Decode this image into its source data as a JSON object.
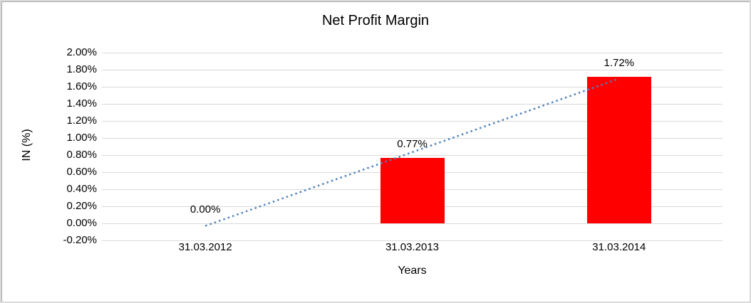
{
  "chart_data": {
    "type": "bar",
    "title": "Net Profit Margin",
    "xlabel": "Years",
    "ylabel": "IN (%)",
    "categories": [
      "31.03.2012",
      "31.03.2013",
      "31.03.2014"
    ],
    "values": [
      0.0,
      0.77,
      1.72
    ],
    "data_labels": [
      "0.00%",
      "0.77%",
      "1.72%"
    ],
    "y_tick_labels": [
      "2.00%",
      "1.80%",
      "1.60%",
      "1.40%",
      "1.20%",
      "1.00%",
      "0.80%",
      "0.60%",
      "0.40%",
      "0.20%",
      "0.00%",
      "-0.20%"
    ],
    "y_tick_values": [
      2.0,
      1.8,
      1.6,
      1.4,
      1.2,
      1.0,
      0.8,
      0.6,
      0.4,
      0.2,
      0.0,
      -0.2
    ],
    "ylim": [
      -0.2,
      2.0
    ],
    "y_tick_step": 0.2,
    "grid": true,
    "legend_position": "none",
    "trendline": {
      "style": "dotted",
      "start_value": -0.03,
      "end_value": 1.69
    },
    "colors": {
      "bar": "#FF0000",
      "trendline": "#4F81BD",
      "gridline": "#D9D9D9",
      "text": "#000000"
    }
  }
}
